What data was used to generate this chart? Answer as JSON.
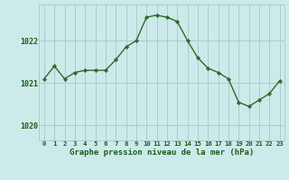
{
  "x": [
    0,
    1,
    2,
    3,
    4,
    5,
    6,
    7,
    8,
    9,
    10,
    11,
    12,
    13,
    14,
    15,
    16,
    17,
    18,
    19,
    20,
    21,
    22,
    23
  ],
  "y": [
    1021.1,
    1021.4,
    1021.1,
    1021.25,
    1021.3,
    1021.3,
    1021.3,
    1021.55,
    1021.85,
    1022.0,
    1022.55,
    1022.6,
    1022.55,
    1022.45,
    1022.0,
    1021.6,
    1021.35,
    1021.25,
    1021.1,
    1020.55,
    1020.45,
    1020.6,
    1020.75,
    1021.05
  ],
  "line_color": "#2d6a2d",
  "marker_color": "#2d6a2d",
  "bg_color": "#cdeaea",
  "grid_color": "#aacccc",
  "xlabel": "Graphe pression niveau de la mer (hPa)",
  "xlabel_color": "#1a5c1a",
  "tick_color": "#1a5c1a",
  "yticks": [
    1020,
    1021,
    1022
  ],
  "ylim": [
    1019.65,
    1022.85
  ],
  "xlim": [
    -0.5,
    23.5
  ],
  "xtick_labels": [
    "0",
    "1",
    "2",
    "3",
    "4",
    "5",
    "6",
    "7",
    "8",
    "9",
    "10",
    "11",
    "12",
    "13",
    "14",
    "15",
    "16",
    "17",
    "18",
    "19",
    "20",
    "21",
    "22",
    "23"
  ]
}
